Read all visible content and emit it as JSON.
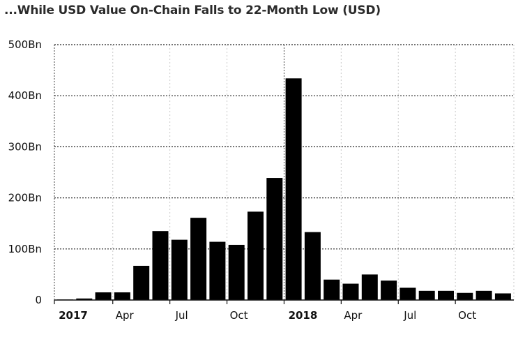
{
  "chart_data": {
    "type": "bar",
    "title": "...While USD Value On-Chain Falls to 22-Month Low (USD)",
    "xlabel": "",
    "ylabel": "",
    "ylim": [
      0,
      500
    ],
    "y_unit": "Bn",
    "y_ticks": [
      "0",
      "100Bn",
      "200Bn",
      "300Bn",
      "400Bn",
      "500Bn"
    ],
    "x_tick_labels": [
      {
        "label": "2017",
        "bold": true
      },
      {
        "label": "Apr",
        "bold": false
      },
      {
        "label": "Jul",
        "bold": false
      },
      {
        "label": "Oct",
        "bold": false
      },
      {
        "label": "2018",
        "bold": true
      },
      {
        "label": "Apr",
        "bold": false
      },
      {
        "label": "Jul",
        "bold": false
      },
      {
        "label": "Oct",
        "bold": false
      }
    ],
    "categories": [
      "2017-01",
      "2017-02",
      "2017-03",
      "2017-04",
      "2017-05",
      "2017-06",
      "2017-07",
      "2017-08",
      "2017-09",
      "2017-10",
      "2017-11",
      "2017-12",
      "2018-01",
      "2018-02",
      "2018-03",
      "2018-04",
      "2018-05",
      "2018-06",
      "2018-07",
      "2018-08",
      "2018-09",
      "2018-10",
      "2018-11",
      "2018-12"
    ],
    "values": [
      1,
      3,
      15,
      15,
      67,
      135,
      118,
      161,
      114,
      108,
      173,
      239,
      434,
      133,
      40,
      32,
      50,
      38,
      24,
      18,
      18,
      14,
      18,
      13
    ],
    "grid": true,
    "bar_color": "#000000"
  }
}
